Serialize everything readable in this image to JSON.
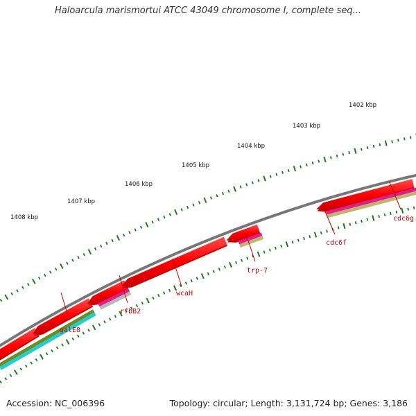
{
  "title": "Haloarcula marismortui ATCC 43049 chromosome I, complete seq...",
  "footer": {
    "accession": "Accession: NC_006396",
    "topology": "Topology: circular; Length: 3,131,724 bp; Genes: 3,186"
  },
  "scale_labels": [
    "1408 kbp",
    "1407 kbp",
    "1406 kbp",
    "1405 kbp",
    "1404 kbp",
    "1403 kbp",
    "1402 kbp"
  ],
  "gene_labels": [
    "galE8",
    "rfbB2",
    "wcaH",
    "trp-7",
    "cdc6f",
    "cdc6g"
  ],
  "colors": {
    "backbone": "#7a7a7a",
    "gene": "#ff0000",
    "tick": "#1a7a1a",
    "label": "#cc0000",
    "cog_olive": "#6b8e23",
    "cog_cyan": "#20d0d0",
    "cog_pink": "#e0208a",
    "cog_grey": "#b8b8b8",
    "cog_khaki": "#bdb76b"
  }
}
